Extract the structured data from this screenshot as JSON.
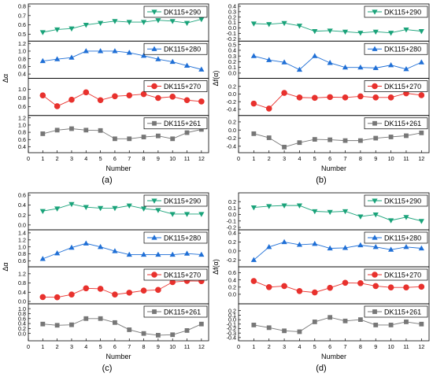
{
  "figure": {
    "panel_letters": [
      "(a)",
      "(b)",
      "(c)",
      "(d)"
    ],
    "stations": [
      "DK115+290",
      "DK115+280",
      "DK115+270",
      "DK115+261"
    ],
    "series_colors": {
      "DK115+290": "#1aa37a",
      "DK115+280": "#1f6fd6",
      "DK115+270": "#e8312d",
      "DK115+261": "#777777"
    },
    "series_markers": {
      "DK115+290": "triangle-down",
      "DK115+280": "triangle-up",
      "DK115+270": "circle",
      "DK115+261": "square"
    }
  },
  "chart_data": [
    {
      "type": "line",
      "panel": "(a)",
      "xlabel": "Number",
      "ylabel": "Δα",
      "x": [
        1,
        2,
        3,
        4,
        5,
        6,
        7,
        8,
        9,
        10,
        11,
        12
      ],
      "xticks": [
        "0",
        "1",
        "2",
        "3",
        "4",
        "5",
        "6",
        "7",
        "8",
        "9",
        "10",
        "11",
        "12"
      ],
      "xlim": [
        0,
        12.5
      ],
      "legend_position": "top-right",
      "series": [
        {
          "name": "DK115+290",
          "ylim": [
            0.45,
            0.8
          ],
          "yticks": [
            "0.5",
            "0.6",
            "0.7",
            "0.8"
          ],
          "values": [
            0.52,
            0.55,
            0.56,
            0.6,
            0.62,
            0.64,
            0.63,
            0.63,
            0.65,
            0.64,
            0.62,
            0.66
          ]
        },
        {
          "name": "DK115+280",
          "ylim": [
            0.35,
            1.2
          ],
          "yticks": [
            "0.4",
            "0.6",
            "0.8",
            "1.0",
            "1.2"
          ],
          "values": [
            0.74,
            0.79,
            0.83,
            1.0,
            1.0,
            1.0,
            0.96,
            0.88,
            0.79,
            0.72,
            0.62,
            0.52
          ]
        },
        {
          "name": "DK115+270",
          "ylim": [
            0.45,
            1.2
          ],
          "yticks": [
            "0.6",
            "0.8",
            "1.0"
          ],
          "values": [
            0.86,
            0.61,
            0.76,
            0.93,
            0.75,
            0.84,
            0.86,
            0.89,
            0.8,
            0.83,
            0.75,
            0.72
          ]
        },
        {
          "name": "DK115+261",
          "ylim": [
            0.3,
            1.2
          ],
          "yticks": [
            "0.4",
            "0.6",
            "0.8",
            "1.0",
            "1.2"
          ],
          "values": [
            0.76,
            0.86,
            0.9,
            0.86,
            0.85,
            0.62,
            0.62,
            0.67,
            0.7,
            0.62,
            0.79,
            0.88
          ]
        }
      ]
    },
    {
      "type": "line",
      "panel": "(b)",
      "xlabel": "Number",
      "ylabel": "Δf(α)",
      "x": [
        1,
        2,
        3,
        4,
        5,
        6,
        7,
        8,
        9,
        10,
        11,
        12
      ],
      "xticks": [
        "0",
        "1",
        "2",
        "3",
        "4",
        "5",
        "6",
        "7",
        "8",
        "9",
        "10",
        "11",
        "12"
      ],
      "xlim": [
        0,
        12.5
      ],
      "legend_position": "top-right",
      "series": [
        {
          "name": "DK115+290",
          "ylim": [
            -0.2,
            0.4
          ],
          "yticks": [
            "-0.2",
            "-0.1",
            "0.0",
            "0.1",
            "0.2",
            "0.3",
            "0.4"
          ],
          "values": [
            0.08,
            0.07,
            0.09,
            0.04,
            -0.06,
            -0.05,
            -0.07,
            -0.09,
            -0.07,
            -0.09,
            -0.03,
            -0.06
          ]
        },
        {
          "name": "DK115+280",
          "ylim": [
            -0.05,
            0.52
          ],
          "yticks": [
            "0.0",
            "0.1",
            "0.2",
            "0.3",
            "0.4",
            "0.5"
          ],
          "values": [
            0.3,
            0.23,
            0.19,
            0.06,
            0.3,
            0.18,
            0.1,
            0.1,
            0.09,
            0.14,
            0.07,
            0.19
          ]
        },
        {
          "name": "DK115+270",
          "ylim": [
            -0.5,
            0.35
          ],
          "yticks": [
            "-0.4",
            "-0.2",
            "0.0",
            "0.2"
          ],
          "values": [
            -0.25,
            -0.38,
            0.03,
            -0.09,
            -0.1,
            -0.08,
            -0.09,
            -0.06,
            -0.09,
            -0.09,
            0.02,
            -0.03
          ]
        },
        {
          "name": "DK115+261",
          "ylim": [
            -0.5,
            0.3
          ],
          "yticks": [
            "-0.4",
            "-0.2",
            "0.0",
            "0.2"
          ],
          "values": [
            -0.09,
            -0.19,
            -0.42,
            -0.31,
            -0.23,
            -0.24,
            -0.26,
            -0.26,
            -0.2,
            -0.17,
            -0.14,
            -0.07
          ]
        }
      ]
    },
    {
      "type": "line",
      "panel": "(c)",
      "xlabel": "Number",
      "ylabel": "Δα",
      "x": [
        1,
        2,
        3,
        4,
        5,
        6,
        7,
        8,
        9,
        10,
        11,
        12
      ],
      "xticks": [
        "0",
        "1",
        "2",
        "3",
        "4",
        "5",
        "6",
        "7",
        "8",
        "9",
        "10",
        "11",
        "12"
      ],
      "xlim": [
        0,
        12.5
      ],
      "legend_position": "top-right",
      "series": [
        {
          "name": "DK115+290",
          "ylim": [
            -0.05,
            0.6
          ],
          "yticks": [
            "0.0",
            "0.2",
            "0.4",
            "0.6"
          ],
          "values": [
            0.28,
            0.33,
            0.42,
            0.36,
            0.34,
            0.34,
            0.39,
            0.33,
            0.3,
            0.22,
            0.22,
            0.22
          ]
        },
        {
          "name": "DK115+280",
          "ylim": [
            0.5,
            1.42
          ],
          "yticks": [
            "0.6",
            "0.8",
            "1.0",
            "1.2",
            "1.4"
          ],
          "values": [
            0.66,
            0.82,
            0.98,
            1.1,
            1.0,
            0.88,
            0.78,
            0.78,
            0.78,
            0.78,
            0.81,
            0.78
          ]
        },
        {
          "name": "DK115+270",
          "ylim": [
            0.0,
            1.4
          ],
          "yticks": [
            "0.0",
            "0.4",
            "0.8",
            "1.2"
          ],
          "values": [
            0.19,
            0.18,
            0.3,
            0.57,
            0.55,
            0.3,
            0.38,
            0.47,
            0.5,
            0.84,
            0.89,
            0.88
          ]
        },
        {
          "name": "DK115+261",
          "ylim": [
            -0.2,
            1.1
          ],
          "yticks": [
            "0.0",
            "0.2",
            "0.4",
            "0.6",
            "0.8",
            "1.0"
          ],
          "values": [
            0.38,
            0.33,
            0.35,
            0.6,
            0.6,
            0.44,
            0.15,
            0.0,
            -0.07,
            -0.05,
            0.12,
            0.38
          ]
        }
      ]
    },
    {
      "type": "line",
      "panel": "(d)",
      "xlabel": "Number",
      "ylabel": "Δf(α)",
      "x": [
        1,
        2,
        3,
        4,
        5,
        6,
        7,
        8,
        9,
        10,
        11,
        12
      ],
      "xticks": [
        "0",
        "1",
        "2",
        "3",
        "4",
        "5",
        "6",
        "7",
        "8",
        "9",
        "10",
        "11",
        "12"
      ],
      "xlim": [
        0,
        12.5
      ],
      "legend_position": "top-right",
      "series": [
        {
          "name": "DK115+290",
          "ylim": [
            -0.2,
            0.3
          ],
          "yticks": [
            "-0.2",
            "-0.1",
            "0.0",
            "0.1",
            "0.2"
          ],
          "values": [
            0.11,
            0.13,
            0.14,
            0.14,
            0.05,
            0.04,
            0.05,
            -0.03,
            0.0,
            -0.09,
            -0.04,
            -0.1
          ]
        },
        {
          "name": "DK115+280",
          "ylim": [
            -0.3,
            0.42
          ],
          "yticks": [
            "-0.2",
            "0.0",
            "0.2",
            "0.4"
          ],
          "values": [
            -0.2,
            0.09,
            0.2,
            0.14,
            0.16,
            0.06,
            0.07,
            0.13,
            0.09,
            0.03,
            0.09,
            0.06
          ]
        },
        {
          "name": "DK115+270",
          "ylim": [
            -0.2,
            0.7
          ],
          "yticks": [
            "0.0",
            "0.2",
            "0.4",
            "0.6"
          ],
          "values": [
            0.37,
            0.2,
            0.23,
            0.09,
            0.05,
            0.18,
            0.32,
            0.31,
            0.23,
            0.19,
            0.19,
            0.21
          ]
        },
        {
          "name": "DK115+261",
          "ylim": [
            -0.42,
            0.3
          ],
          "yticks": [
            "-0.4",
            "-0.3",
            "-0.2",
            "-0.1",
            "0.0",
            "0.1",
            "0.2"
          ],
          "values": [
            -0.12,
            -0.18,
            -0.25,
            -0.27,
            -0.05,
            0.05,
            -0.03,
            0.0,
            -0.12,
            -0.12,
            -0.05,
            -0.1
          ]
        }
      ]
    }
  ]
}
